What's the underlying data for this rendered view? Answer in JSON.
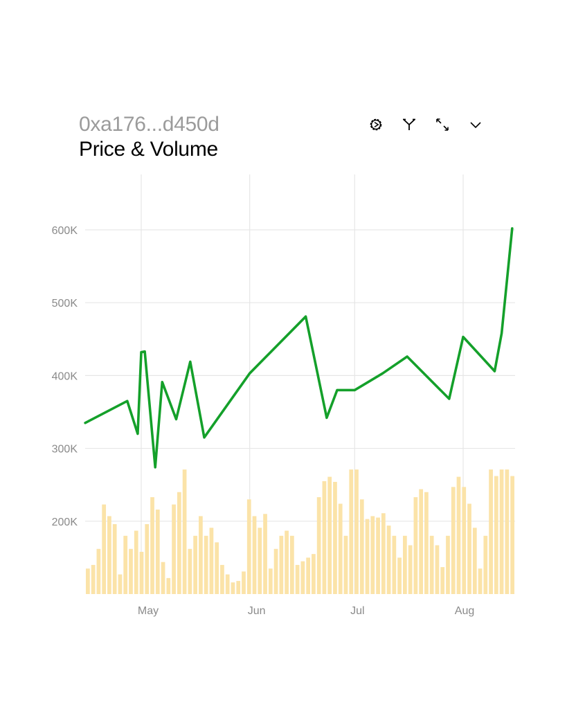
{
  "header": {
    "address": "0xa176...d450d",
    "title": "Price & Volume"
  },
  "toolbar": {
    "icons": [
      "settings-icon",
      "branch-icon",
      "expand-icon",
      "chevron-down-icon"
    ]
  },
  "colors": {
    "price_line": "#14a02a",
    "volume_bar": "#fbe3a8",
    "grid": "#e6e6e6",
    "tick_text": "#8a8a8a"
  },
  "chart_data": {
    "type": "line",
    "title": "Price & Volume",
    "xlabel": "",
    "ylabel": "",
    "x_ticks": [
      "May",
      "Jun",
      "Jul",
      "Aug"
    ],
    "y_ticks": [
      "200K",
      "300K",
      "400K",
      "500K",
      "600K"
    ],
    "ylim": [
      100000,
      676000
    ],
    "grid": true,
    "series": [
      {
        "type": "line",
        "x": [
          "Apr 15",
          "Apr 27",
          "Apr 30",
          "May 1",
          "May 2",
          "May 5",
          "May 7",
          "May 11",
          "May 15",
          "May 19",
          "Jun 1",
          "Jun 17",
          "Jun 23",
          "Jun 26",
          "Jul 1",
          "Jul 9",
          "Jul 16",
          "Jul 28",
          "Aug 1",
          "Aug 10",
          "Aug 12",
          "Aug 15"
        ],
        "values": [
          335000,
          365000,
          320000,
          432000,
          433000,
          274000,
          391000,
          340000,
          419000,
          315000,
          403000,
          481000,
          342000,
          380000,
          380000,
          403000,
          426000,
          368000,
          453000,
          406000,
          458000,
          602000
        ]
      },
      {
        "type": "bar",
        "values": [
          135000,
          140000,
          162000,
          223000,
          207000,
          196000,
          127000,
          180000,
          162000,
          187000,
          158000,
          196000,
          233000,
          216000,
          144000,
          122000,
          223000,
          240000,
          271000,
          162000,
          180000,
          207000,
          180000,
          191000,
          171000,
          140000,
          127000,
          116000,
          118000,
          131000,
          230000,
          207000,
          191000,
          210000,
          135000,
          162000,
          180000,
          187000,
          180000,
          140000,
          145000,
          150000,
          155000,
          233000,
          255000,
          261000,
          254000,
          224000,
          180000,
          271000,
          271000,
          230000,
          203000,
          207000,
          205000,
          211000,
          194000,
          180000,
          150000,
          180000,
          167000,
          233000,
          244000,
          240000,
          180000,
          167000,
          137000,
          180000,
          247000,
          261000,
          247000,
          224000,
          191000,
          135000,
          180000,
          271000,
          262000,
          271000,
          271000,
          262000
        ]
      }
    ]
  }
}
